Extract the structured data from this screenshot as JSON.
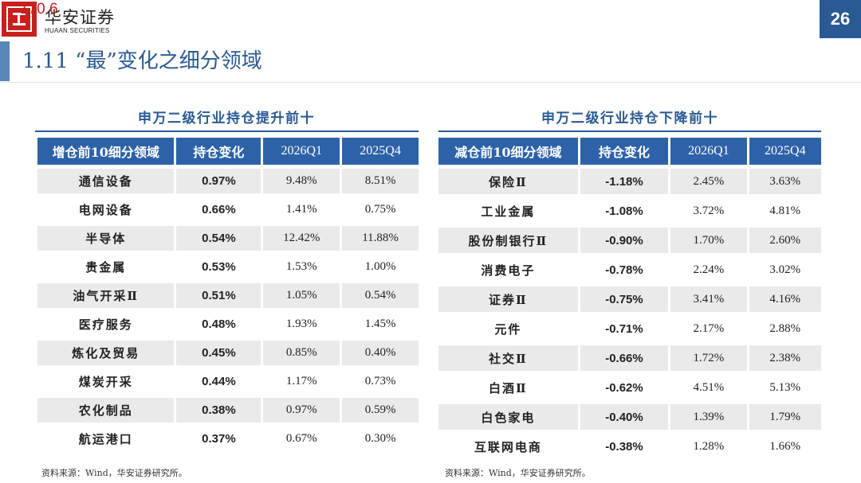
{
  "header": {
    "logo_cn": "华安证券",
    "logo_en": "HUAAN SECURITIES",
    "overlay_number": "170.6",
    "page_number": "26"
  },
  "title": "1.11 “最”变化之细分领域",
  "left_table": {
    "title": "申万二级行业持仓提升前十",
    "headers": [
      "增仓前10细分领域",
      "持仓变化",
      "2026Q1",
      "2025Q4"
    ],
    "rows": [
      [
        "通信设备",
        "0.97%",
        "9.48%",
        "8.51%"
      ],
      [
        "电网设备",
        "0.66%",
        "1.41%",
        "0.75%"
      ],
      [
        "半导体",
        "0.54%",
        "12.42%",
        "11.88%"
      ],
      [
        "贵金属",
        "0.53%",
        "1.53%",
        "1.00%"
      ],
      [
        "油气开采Ⅱ",
        "0.51%",
        "1.05%",
        "0.54%"
      ],
      [
        "医疗服务",
        "0.48%",
        "1.93%",
        "1.45%"
      ],
      [
        "炼化及贸易",
        "0.45%",
        "0.85%",
        "0.40%"
      ],
      [
        "煤炭开采",
        "0.44%",
        "1.17%",
        "0.73%"
      ],
      [
        "农化制品",
        "0.38%",
        "0.97%",
        "0.59%"
      ],
      [
        "航运港口",
        "0.37%",
        "0.67%",
        "0.30%"
      ]
    ],
    "source": "资料来源：Wind，华安证券研究所。"
  },
  "right_table": {
    "title": "申万二级行业持仓下降前十",
    "headers": [
      "减仓前10细分领域",
      "持仓变化",
      "2026Q1",
      "2025Q4"
    ],
    "rows": [
      [
        "保险Ⅱ",
        "-1.18%",
        "2.45%",
        "3.63%"
      ],
      [
        "工业金属",
        "-1.08%",
        "3.72%",
        "4.81%"
      ],
      [
        "股份制银行Ⅱ",
        "-0.90%",
        "1.70%",
        "2.60%"
      ],
      [
        "消费电子",
        "-0.78%",
        "2.24%",
        "3.02%"
      ],
      [
        "证券Ⅱ",
        "-0.75%",
        "3.41%",
        "4.16%"
      ],
      [
        "元件",
        "-0.71%",
        "2.17%",
        "2.88%"
      ],
      [
        "社交Ⅱ",
        "-0.66%",
        "1.72%",
        "2.38%"
      ],
      [
        "白酒Ⅱ",
        "-0.62%",
        "4.51%",
        "5.13%"
      ],
      [
        "白色家电",
        "-0.40%",
        "1.39%",
        "1.79%"
      ],
      [
        "互联网电商",
        "-0.38%",
        "1.28%",
        "1.66%"
      ]
    ],
    "source": "资料来源：Wind，华安证券研究所。"
  },
  "colors": {
    "brand_blue": "#2a5a93",
    "header_blue": "#2d62a8",
    "logo_red": "#c8201d",
    "stripe_gray": "#eaeaea"
  }
}
